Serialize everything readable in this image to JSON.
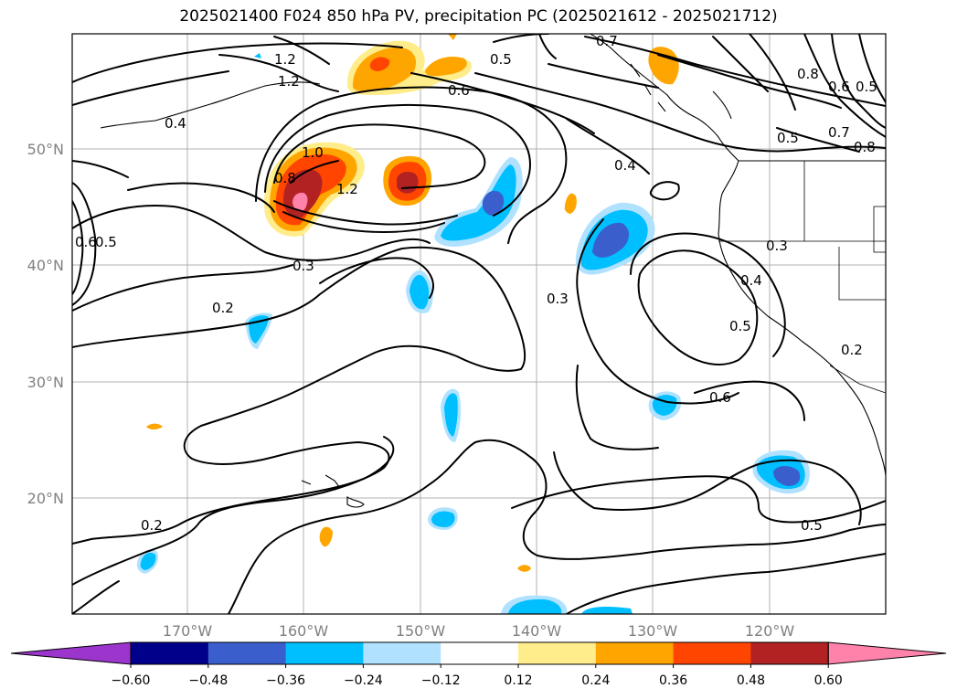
{
  "title": "2025021400 F024 850 hPa PV, precipitation PC (2025021612 - 2025021712)",
  "map": {
    "lat_ticks": [
      "50°N",
      "40°N",
      "30°N",
      "20°N"
    ],
    "lon_ticks": [
      "170°W",
      "160°W",
      "150°W",
      "140°W",
      "130°W",
      "120°W"
    ]
  },
  "contour_labels": [
    "1.2",
    "1.2",
    "0.7",
    "0.5",
    "0.8",
    "0.6",
    "0.5",
    "0.6",
    "0.4",
    "0.5",
    "0.7",
    "0.8",
    "0.8",
    "1.0",
    "1.2",
    "0.4",
    "0.6",
    "0.5",
    "0.3",
    "0.3",
    "0.3",
    "0.4",
    "0.2",
    "0.5",
    "0.2",
    "0.6",
    "0.2",
    "0.5"
  ],
  "colorbar": {
    "ticks": [
      "−0.60",
      "−0.48",
      "−0.36",
      "−0.24",
      "−0.12",
      "0.12",
      "0.24",
      "0.36",
      "0.48",
      "0.60"
    ],
    "colors": [
      "#9b35cc",
      "#00008b",
      "#3a5fcd",
      "#00bfff",
      "#b0e2ff",
      "#ffffff",
      "#ffec8b",
      "#ffa500",
      "#ff4500",
      "#b22222",
      "#ff82ab"
    ]
  }
}
